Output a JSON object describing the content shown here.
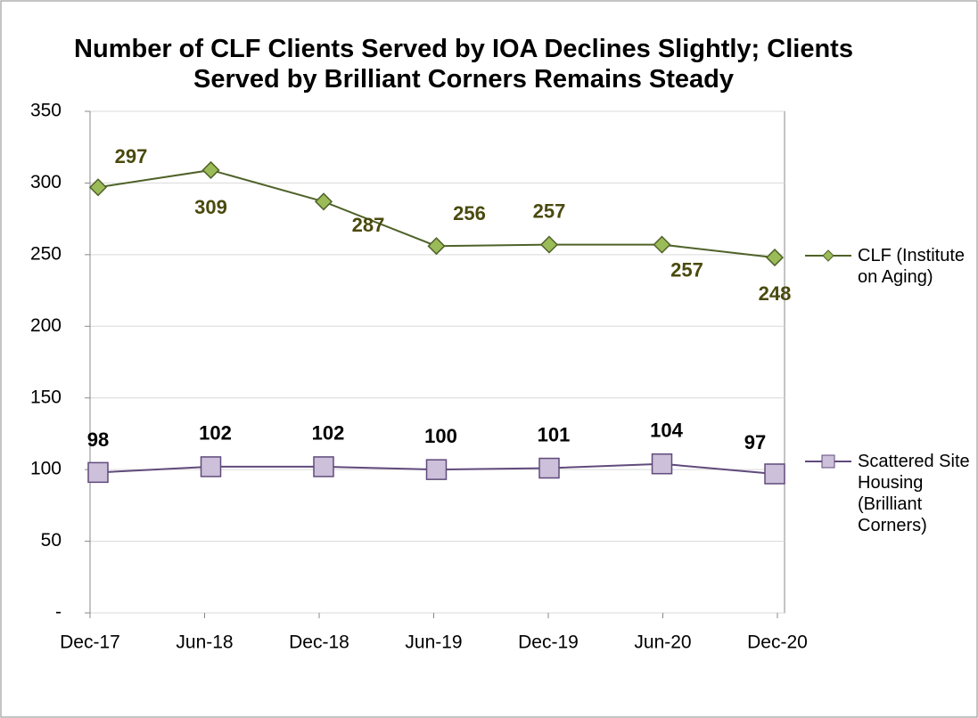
{
  "chart_data": {
    "type": "line",
    "title": "Number of CLF Clients Served by IOA Declines Slightly; Clients Served by Brilliant Corners Remains Steady",
    "categories": [
      "Dec-17",
      "Jun-18",
      "Dec-18",
      "Jun-19",
      "Dec-19",
      "Jun-20",
      "Dec-20"
    ],
    "series": [
      {
        "name": "CLF (Institute on Aging)",
        "color": "#4f6228",
        "marker_color": "#9bbb59",
        "marker": "diamond",
        "label_color": "#4a4a0e",
        "values": [
          297,
          309,
          287,
          256,
          257,
          257,
          248
        ]
      },
      {
        "name": "Scattered Site Housing (Brilliant Corners)",
        "color": "#604a7b",
        "marker_color": "#ccc0da",
        "marker": "square",
        "label_color": "#000000",
        "values": [
          98,
          102,
          102,
          100,
          101,
          104,
          97
        ]
      }
    ],
    "ylim": [
      0,
      350
    ],
    "yticks": [
      {
        "value": 0,
        "label": "-"
      },
      50,
      100,
      150,
      200,
      250,
      300,
      350
    ],
    "grid": true,
    "legend": "right"
  }
}
